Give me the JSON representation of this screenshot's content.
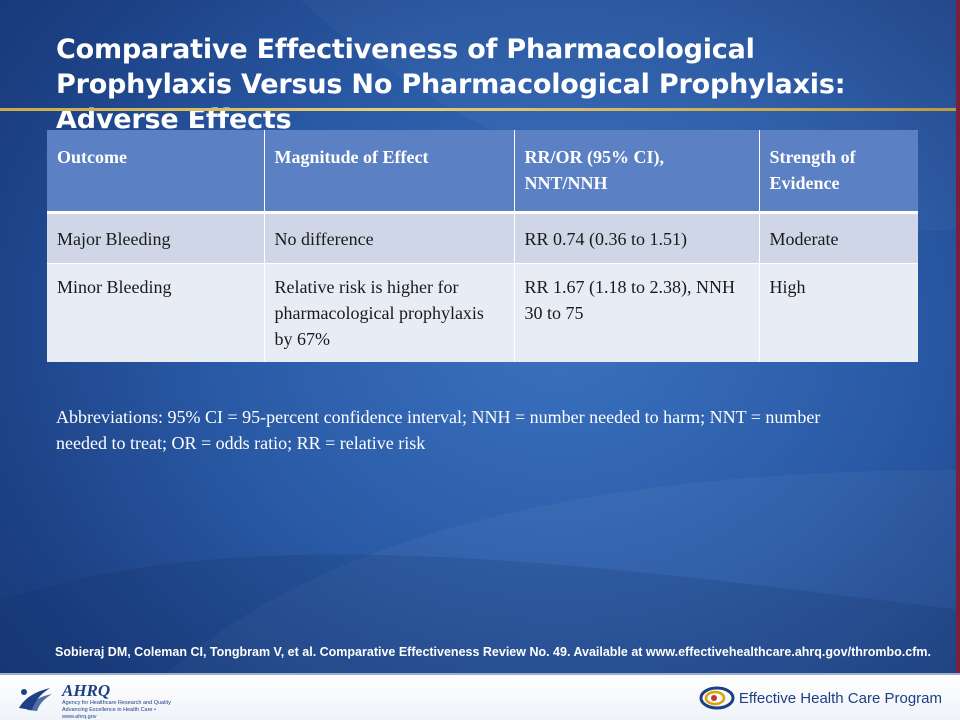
{
  "slide": {
    "title": "Comparative Effectiveness of Pharmacological Prophylaxis Versus No Pharmacological Prophylaxis: Adverse Effects"
  },
  "table": {
    "headers": [
      "Outcome",
      "Magnitude of Effect",
      "RR/OR (95% CI), NNT/NNH",
      "Strength of Evidence"
    ],
    "rows": [
      [
        "Major Bleeding",
        "No difference",
        "RR 0.74 (0.36 to 1.51)",
        "Moderate"
      ],
      [
        "Minor Bleeding",
        "Relative risk is higher for pharmacological prophylaxis by 67%",
        "RR 1.67 (1.18 to 2.38), NNH 30 to 75",
        "High"
      ]
    ]
  },
  "abbreviations": "Abbreviations: 95% CI = 95-percent confidence interval; NNH = number needed to harm; NNT = number needed to treat; OR = odds ratio; RR = relative risk",
  "citation": "Sobieraj DM, Coleman CI, Tongbram V, et al. Comparative Effectiveness Review No. 49. Available at www.effectivehealthcare.ahrq.gov/thrombo.cfm.",
  "footer": {
    "ahrq_logo": "AHRQ",
    "ahrq_subtitle": "Agency for Healthcare Research and Quality",
    "ahrq_tagline": "Advancing Excellence in Health Care • www.ahrq.gov",
    "ehc_label": "Effective Health Care Program"
  },
  "icons": [
    "hhs-eagle-icon",
    "ehc-program-icon"
  ],
  "colors": {
    "background": "#2a5aa6",
    "header_row": "#5b80c4",
    "row_major": "#cfd6e8",
    "row_minor": "#e8ecf5",
    "accent_rule": "#d4b55a"
  }
}
